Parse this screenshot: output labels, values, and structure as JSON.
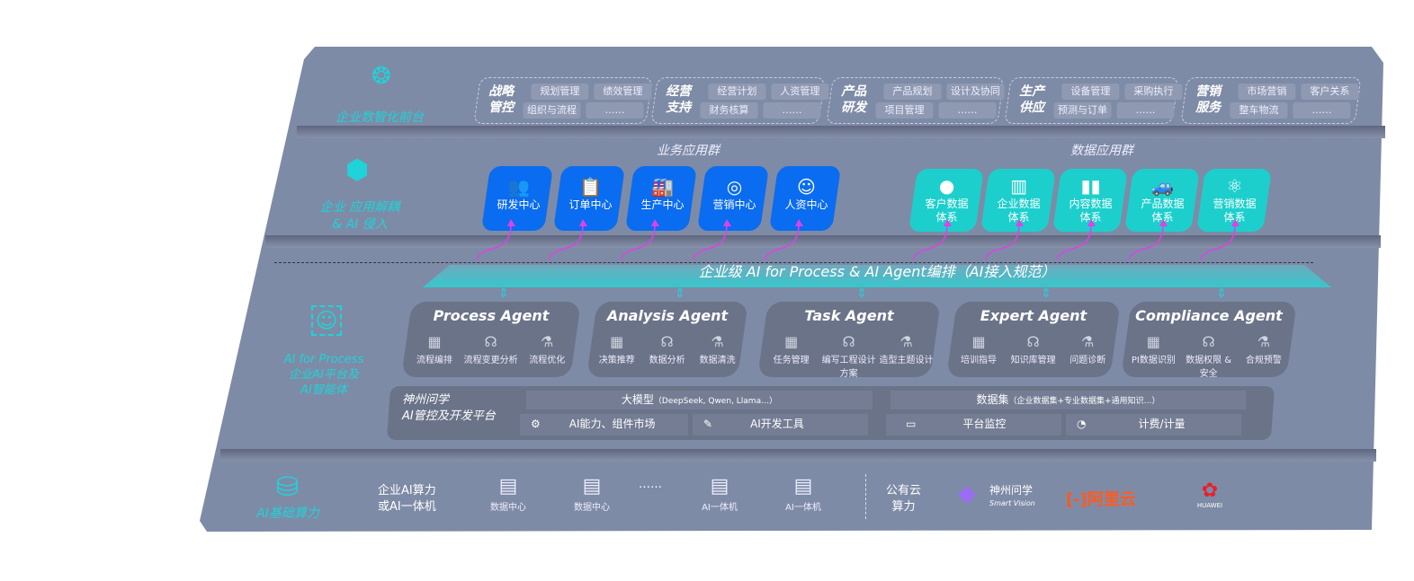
{
  "layers": {
    "front": {
      "label": "企业数智化前台",
      "icon": "brain-icon",
      "groups": [
        {
          "title": "战略管控",
          "items": [
            "规划管理",
            "绩效管理",
            "组织与流程",
            "……"
          ]
        },
        {
          "title": "经营支持",
          "items": [
            "经营计划",
            "人资管理",
            "财务核算",
            "……"
          ]
        },
        {
          "title": "产品研发",
          "items": [
            "产品规划",
            "设计及协同",
            "项目管理",
            "……"
          ]
        },
        {
          "title": "生产供应",
          "items": [
            "设备管理",
            "采购执行",
            "预测与订单",
            "……"
          ]
        },
        {
          "title": "营销服务",
          "items": [
            "市场营销",
            "客户关系",
            "整车物流",
            "……"
          ]
        }
      ]
    },
    "apps": {
      "label1": "企业 应用解耦",
      "label2": "& AI 侵入",
      "icon": "network-node-icon",
      "business_title": "业务应用群",
      "business": [
        {
          "label": "研发中心",
          "icon": "users-icon"
        },
        {
          "label": "订单中心",
          "icon": "clipboard-icon"
        },
        {
          "label": "生产中心",
          "icon": "factory-icon"
        },
        {
          "label": "营销中心",
          "icon": "target-icon"
        },
        {
          "label": "人资中心",
          "icon": "person-icon"
        }
      ],
      "data_title": "数据应用群",
      "data": [
        {
          "label": "客户数据",
          "label2": "体系",
          "icon": "user-icon"
        },
        {
          "label": "企业数据",
          "label2": "体系",
          "icon": "building-icon"
        },
        {
          "label": "内容数据",
          "label2": "体系",
          "icon": "books-icon"
        },
        {
          "label": "产品数据",
          "label2": "体系",
          "icon": "car-icon"
        },
        {
          "label": "营销数据",
          "label2": "体系",
          "icon": "atom-icon"
        }
      ],
      "arrow_color": "#e040e8"
    },
    "banner": "企业级 AI for Process & AI Agent编排（AI接入规范）",
    "ai": {
      "label1": "AI for Process",
      "label2": "企业AI平台及",
      "label3": "AI智能体",
      "icon": "face-scan-icon",
      "agents": [
        {
          "title": "Process Agent",
          "items": [
            "流程编排",
            "流程变更分析",
            "流程优化"
          ]
        },
        {
          "title": "Analysis Agent",
          "items": [
            "决策推荐",
            "数据分析",
            "数据清洗"
          ]
        },
        {
          "title": "Task Agent",
          "items": [
            "任务管理",
            "编写工程设计方案",
            "造型主题设计"
          ]
        },
        {
          "title": "Expert Agent",
          "items": [
            "培训指导",
            "知识库管理",
            "问题诊断"
          ]
        },
        {
          "title": "Compliance Agent",
          "items": [
            "PI数据识别",
            "数据权限 & 安全",
            "合规预警"
          ]
        }
      ],
      "platform": {
        "name1": "神州问学",
        "name2": "AI管控及开发平台",
        "model": "大模型",
        "model_note": "（DeepSeek, Qwen, Llama…）",
        "market": "AI能力、组件市场",
        "devtools": "AI开发工具",
        "dataset": "数据集",
        "dataset_note": "（企业数据集+专业数据集+通用知识…）",
        "monitor": "平台监控",
        "billing": "计费/计量"
      }
    },
    "infra": {
      "label": "AI基础算力",
      "icon": "database-icon",
      "enterprise1": "企业AI算力",
      "enterprise2": "或AI一体机",
      "servers": [
        "数据中心",
        "数据中心",
        "AI一体机",
        "AI一体机"
      ],
      "ellipsis": "……",
      "cloud1": "公有云",
      "cloud2": "算力",
      "vendors": {
        "smart_vision": "神州问学",
        "smart_vision_en": "Smart Vision",
        "aliyun": "阿里云",
        "huawei": "HUAWEI"
      }
    }
  },
  "colors": {
    "panel": "#7e8ba6",
    "teal": "#1ccfcc",
    "blue": "#0a6cf0",
    "cyan_label": "#1fd3d8",
    "aliyun": "#ff5a1f",
    "huawei": "#e6212a"
  }
}
